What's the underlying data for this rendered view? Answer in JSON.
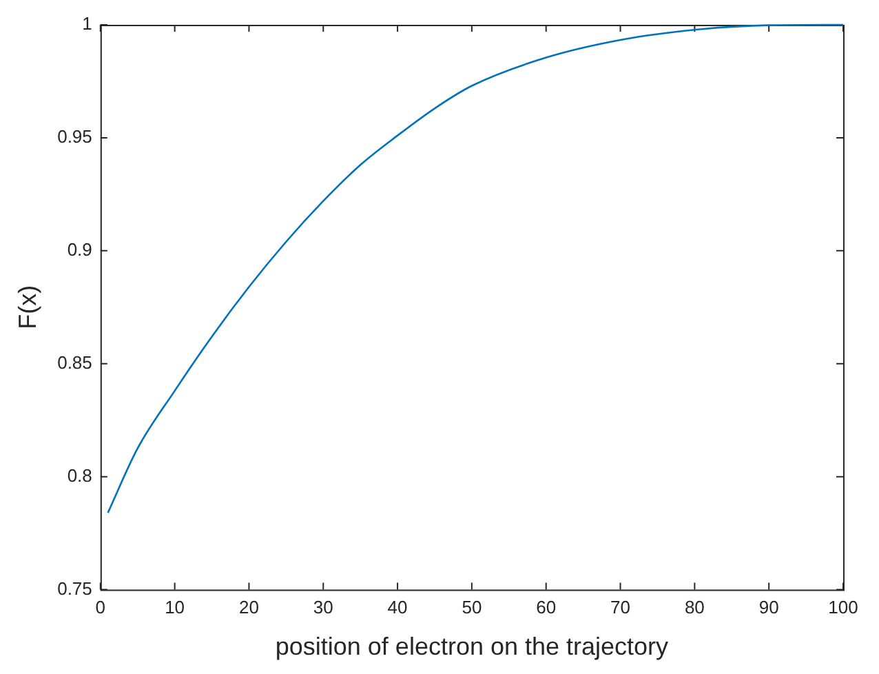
{
  "chart_data": {
    "type": "line",
    "xlabel": "position of electron on the trajectory",
    "ylabel": "F(x)",
    "x": [
      1,
      5,
      10,
      15,
      20,
      25,
      30,
      35,
      40,
      45,
      50,
      60,
      70,
      80,
      90,
      100
    ],
    "series": [
      {
        "color": "#0072bd",
        "values": [
          0.784,
          0.8125,
          0.838,
          0.862,
          0.884,
          0.904,
          0.922,
          0.938,
          0.951,
          0.963,
          0.973,
          0.9855,
          0.9933,
          0.9978,
          0.9998,
          1
        ]
      }
    ],
    "xlim": [
      0,
      100
    ],
    "xticks": [
      0,
      10,
      20,
      30,
      40,
      50,
      60,
      70,
      80,
      90,
      100
    ],
    "ylim": [
      0.75,
      1
    ],
    "yticks": [
      0.75,
      0.8,
      0.85,
      0.9,
      0.95,
      1
    ],
    "grid": false,
    "legend": false,
    "marker": "none",
    "line_style": "solid"
  }
}
